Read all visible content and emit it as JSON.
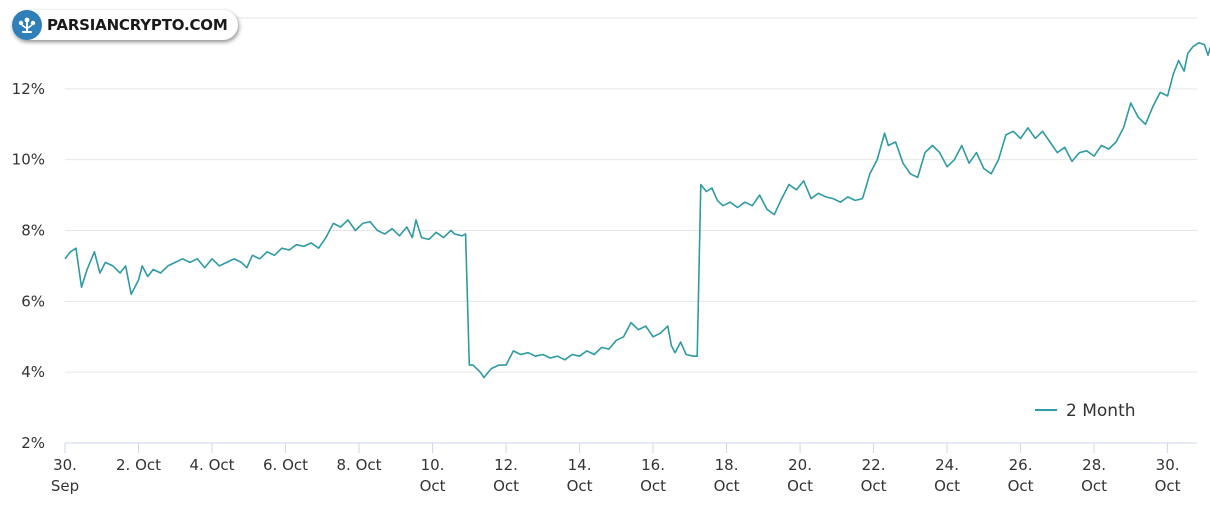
{
  "brand": {
    "name": "PARSIANCRYPTO.COM"
  },
  "colors": {
    "series": "#2e9aa3",
    "grid": "#e6e6e6",
    "axis": "#ccd6eb",
    "brand": "#2f7fb8"
  },
  "chart_data": {
    "type": "line",
    "title": "",
    "xlabel": "",
    "ylabel": "",
    "ylim": [
      2,
      14
    ],
    "xlim": [
      0,
      30.8
    ],
    "y_ticks": [
      "2%",
      "4%",
      "6%",
      "8%",
      "10%",
      "12%"
    ],
    "y_tick_values": [
      2,
      4,
      6,
      8,
      10,
      12
    ],
    "x_ticks": [
      {
        "value": 0,
        "line1": "30.",
        "line2": "Sep"
      },
      {
        "value": 2,
        "line1": "2. Oct",
        "line2": ""
      },
      {
        "value": 4,
        "line1": "4. Oct",
        "line2": ""
      },
      {
        "value": 6,
        "line1": "6. Oct",
        "line2": ""
      },
      {
        "value": 8,
        "line1": "8. Oct",
        "line2": ""
      },
      {
        "value": 10,
        "line1": "10.",
        "line2": "Oct"
      },
      {
        "value": 12,
        "line1": "12.",
        "line2": "Oct"
      },
      {
        "value": 14,
        "line1": "14.",
        "line2": "Oct"
      },
      {
        "value": 16,
        "line1": "16.",
        "line2": "Oct"
      },
      {
        "value": 18,
        "line1": "18.",
        "line2": "Oct"
      },
      {
        "value": 20,
        "line1": "20.",
        "line2": "Oct"
      },
      {
        "value": 22,
        "line1": "22.",
        "line2": "Oct"
      },
      {
        "value": 24,
        "line1": "24.",
        "line2": "Oct"
      },
      {
        "value": 26,
        "line1": "26.",
        "line2": "Oct"
      },
      {
        "value": 28,
        "line1": "28.",
        "line2": "Oct"
      },
      {
        "value": 30,
        "line1": "30.",
        "line2": "Oct"
      }
    ],
    "grid": true,
    "legend_position": "bottom-right",
    "series": [
      {
        "name": "2 Month",
        "points": [
          [
            0.0,
            7.2
          ],
          [
            0.15,
            7.4
          ],
          [
            0.3,
            7.5
          ],
          [
            0.45,
            6.4
          ],
          [
            0.6,
            6.9
          ],
          [
            0.8,
            7.4
          ],
          [
            0.95,
            6.8
          ],
          [
            1.1,
            7.1
          ],
          [
            1.3,
            7.0
          ],
          [
            1.5,
            6.8
          ],
          [
            1.65,
            7.0
          ],
          [
            1.8,
            6.2
          ],
          [
            2.0,
            6.6
          ],
          [
            2.1,
            7.0
          ],
          [
            2.25,
            6.7
          ],
          [
            2.4,
            6.9
          ],
          [
            2.6,
            6.8
          ],
          [
            2.8,
            7.0
          ],
          [
            3.0,
            7.1
          ],
          [
            3.2,
            7.2
          ],
          [
            3.4,
            7.1
          ],
          [
            3.6,
            7.2
          ],
          [
            3.8,
            6.95
          ],
          [
            4.0,
            7.2
          ],
          [
            4.2,
            7.0
          ],
          [
            4.4,
            7.1
          ],
          [
            4.6,
            7.2
          ],
          [
            4.8,
            7.1
          ],
          [
            4.95,
            6.95
          ],
          [
            5.1,
            7.3
          ],
          [
            5.3,
            7.2
          ],
          [
            5.5,
            7.4
          ],
          [
            5.7,
            7.3
          ],
          [
            5.9,
            7.5
          ],
          [
            6.1,
            7.45
          ],
          [
            6.3,
            7.6
          ],
          [
            6.5,
            7.55
          ],
          [
            6.7,
            7.65
          ],
          [
            6.9,
            7.5
          ],
          [
            7.1,
            7.8
          ],
          [
            7.3,
            8.2
          ],
          [
            7.5,
            8.1
          ],
          [
            7.7,
            8.3
          ],
          [
            7.9,
            8.0
          ],
          [
            8.1,
            8.2
          ],
          [
            8.3,
            8.25
          ],
          [
            8.5,
            8.0
          ],
          [
            8.7,
            7.9
          ],
          [
            8.9,
            8.05
          ],
          [
            9.1,
            7.85
          ],
          [
            9.3,
            8.1
          ],
          [
            9.45,
            7.8
          ],
          [
            9.55,
            8.3
          ],
          [
            9.7,
            7.8
          ],
          [
            9.9,
            7.75
          ],
          [
            10.1,
            7.95
          ],
          [
            10.3,
            7.8
          ],
          [
            10.5,
            8.0
          ],
          [
            10.6,
            7.9
          ],
          [
            10.8,
            7.85
          ],
          [
            10.9,
            7.9
          ],
          [
            11.0,
            4.2
          ],
          [
            11.1,
            4.2
          ],
          [
            11.3,
            4.0
          ],
          [
            11.4,
            3.85
          ],
          [
            11.6,
            4.1
          ],
          [
            11.8,
            4.2
          ],
          [
            12.0,
            4.2
          ],
          [
            12.2,
            4.6
          ],
          [
            12.4,
            4.5
          ],
          [
            12.6,
            4.55
          ],
          [
            12.8,
            4.45
          ],
          [
            13.0,
            4.5
          ],
          [
            13.2,
            4.4
          ],
          [
            13.4,
            4.45
          ],
          [
            13.6,
            4.35
          ],
          [
            13.8,
            4.5
          ],
          [
            14.0,
            4.45
          ],
          [
            14.2,
            4.6
          ],
          [
            14.4,
            4.5
          ],
          [
            14.6,
            4.7
          ],
          [
            14.8,
            4.65
          ],
          [
            15.0,
            4.9
          ],
          [
            15.2,
            5.0
          ],
          [
            15.4,
            5.4
          ],
          [
            15.6,
            5.2
          ],
          [
            15.8,
            5.3
          ],
          [
            16.0,
            5.0
          ],
          [
            16.2,
            5.1
          ],
          [
            16.4,
            5.3
          ],
          [
            16.5,
            4.75
          ],
          [
            16.6,
            4.55
          ],
          [
            16.75,
            4.85
          ],
          [
            16.9,
            4.5
          ],
          [
            17.1,
            4.45
          ],
          [
            17.2,
            4.45
          ],
          [
            17.3,
            9.3
          ],
          [
            17.45,
            9.1
          ],
          [
            17.6,
            9.2
          ],
          [
            17.75,
            8.85
          ],
          [
            17.9,
            8.7
          ],
          [
            18.1,
            8.8
          ],
          [
            18.3,
            8.65
          ],
          [
            18.5,
            8.8
          ],
          [
            18.7,
            8.7
          ],
          [
            18.9,
            9.0
          ],
          [
            19.1,
            8.6
          ],
          [
            19.3,
            8.45
          ],
          [
            19.5,
            8.9
          ],
          [
            19.7,
            9.3
          ],
          [
            19.9,
            9.15
          ],
          [
            20.1,
            9.4
          ],
          [
            20.3,
            8.9
          ],
          [
            20.5,
            9.05
          ],
          [
            20.7,
            8.95
          ],
          [
            20.9,
            8.9
          ],
          [
            21.1,
            8.8
          ],
          [
            21.3,
            8.95
          ],
          [
            21.5,
            8.85
          ],
          [
            21.7,
            8.9
          ],
          [
            21.9,
            9.6
          ],
          [
            22.1,
            10.0
          ],
          [
            22.3,
            10.75
          ],
          [
            22.4,
            10.4
          ],
          [
            22.6,
            10.5
          ],
          [
            22.8,
            9.9
          ],
          [
            23.0,
            9.6
          ],
          [
            23.2,
            9.5
          ],
          [
            23.4,
            10.2
          ],
          [
            23.6,
            10.4
          ],
          [
            23.8,
            10.2
          ],
          [
            24.0,
            9.8
          ],
          [
            24.2,
            10.0
          ],
          [
            24.4,
            10.4
          ],
          [
            24.6,
            9.9
          ],
          [
            24.8,
            10.2
          ],
          [
            25.0,
            9.75
          ],
          [
            25.2,
            9.6
          ],
          [
            25.4,
            10.0
          ],
          [
            25.6,
            10.7
          ],
          [
            25.8,
            10.8
          ],
          [
            26.0,
            10.6
          ],
          [
            26.2,
            10.9
          ],
          [
            26.4,
            10.6
          ],
          [
            26.6,
            10.8
          ],
          [
            26.8,
            10.5
          ],
          [
            27.0,
            10.2
          ],
          [
            27.2,
            10.35
          ],
          [
            27.4,
            9.95
          ],
          [
            27.6,
            10.2
          ],
          [
            27.8,
            10.25
          ],
          [
            28.0,
            10.1
          ],
          [
            28.2,
            10.4
          ],
          [
            28.4,
            10.3
          ],
          [
            28.6,
            10.5
          ],
          [
            28.8,
            10.9
          ],
          [
            29.0,
            11.6
          ],
          [
            29.2,
            11.2
          ],
          [
            29.4,
            11.0
          ],
          [
            29.6,
            11.5
          ],
          [
            29.8,
            11.9
          ],
          [
            30.0,
            11.8
          ],
          [
            30.15,
            12.4
          ],
          [
            30.3,
            12.8
          ],
          [
            30.45,
            12.5
          ],
          [
            30.55,
            13.0
          ],
          [
            30.7,
            13.2
          ],
          [
            30.85,
            13.3
          ],
          [
            31.0,
            13.25
          ],
          [
            31.1,
            12.95
          ],
          [
            31.2,
            13.3
          ]
        ]
      }
    ]
  }
}
